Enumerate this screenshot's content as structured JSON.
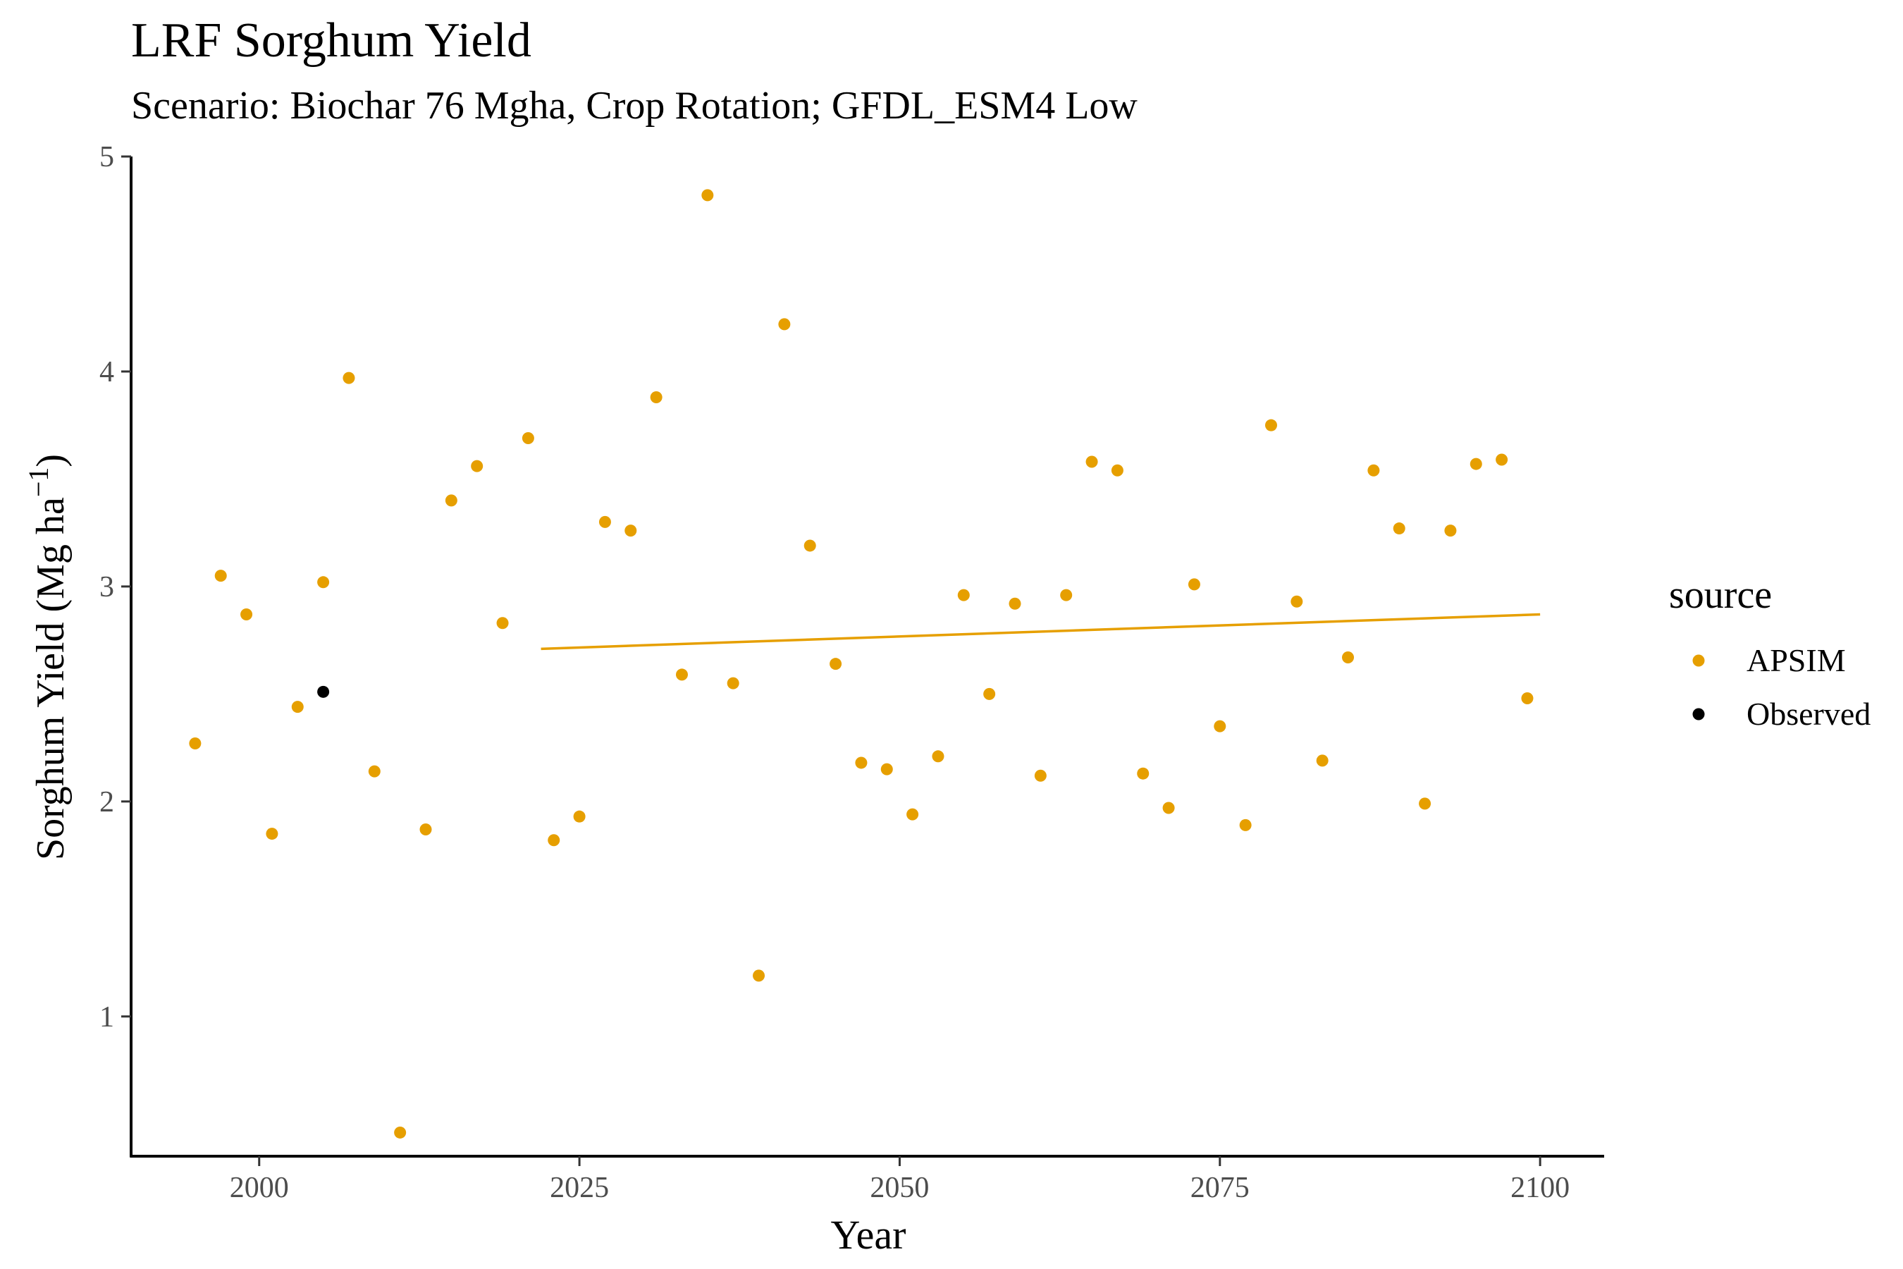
{
  "chart_data": {
    "type": "scatter",
    "title": "LRF Sorghum Yield",
    "subtitle": "Scenario: Biochar 76 Mgha, Crop Rotation; GFDL_ESM4 Low",
    "xlabel": "Year",
    "ylabel_main": "Sorghum Yield (Mg ha",
    "ylabel_sup": "−1",
    "ylabel_close": ")",
    "xlim": [
      1990,
      2105
    ],
    "ylim": [
      0.35,
      5.0
    ],
    "xticks": [
      2000,
      2025,
      2050,
      2075,
      2100
    ],
    "yticks": [
      1,
      2,
      3,
      4,
      5
    ],
    "grid": false,
    "legend": {
      "title": "source",
      "placement": "right",
      "entries": [
        {
          "name": "APSIM",
          "color": "#E69F00"
        },
        {
          "name": "Observed",
          "color": "#000000"
        }
      ]
    },
    "series": [
      {
        "name": "APSIM",
        "color": "#E69F00",
        "points": [
          [
            1995,
            2.27
          ],
          [
            1997,
            3.05
          ],
          [
            1999,
            2.87
          ],
          [
            2001,
            1.85
          ],
          [
            2003,
            2.44
          ],
          [
            2005,
            3.02
          ],
          [
            2007,
            3.97
          ],
          [
            2009,
            2.14
          ],
          [
            2011,
            0.46
          ],
          [
            2013,
            1.87
          ],
          [
            2015,
            3.4
          ],
          [
            2017,
            3.56
          ],
          [
            2019,
            2.83
          ],
          [
            2021,
            3.69
          ],
          [
            2023,
            1.82
          ],
          [
            2025,
            1.93
          ],
          [
            2027,
            3.3
          ],
          [
            2029,
            3.26
          ],
          [
            2031,
            3.88
          ],
          [
            2033,
            2.59
          ],
          [
            2035,
            4.82
          ],
          [
            2037,
            2.55
          ],
          [
            2039,
            1.19
          ],
          [
            2041,
            4.22
          ],
          [
            2043,
            3.19
          ],
          [
            2045,
            2.64
          ],
          [
            2047,
            2.18
          ],
          [
            2049,
            2.15
          ],
          [
            2051,
            1.94
          ],
          [
            2053,
            2.21
          ],
          [
            2055,
            2.96
          ],
          [
            2057,
            2.5
          ],
          [
            2059,
            2.92
          ],
          [
            2061,
            2.12
          ],
          [
            2063,
            2.96
          ],
          [
            2065,
            3.58
          ],
          [
            2067,
            3.54
          ],
          [
            2069,
            2.13
          ],
          [
            2071,
            1.97
          ],
          [
            2073,
            3.01
          ],
          [
            2075,
            2.35
          ],
          [
            2077,
            1.89
          ],
          [
            2079,
            3.75
          ],
          [
            2081,
            2.93
          ],
          [
            2083,
            2.19
          ],
          [
            2085,
            2.67
          ],
          [
            2087,
            3.54
          ],
          [
            2089,
            3.27
          ],
          [
            2091,
            1.99
          ],
          [
            2093,
            3.26
          ],
          [
            2095,
            3.57
          ],
          [
            2097,
            3.59
          ],
          [
            2099,
            2.48
          ]
        ]
      },
      {
        "name": "Observed",
        "color": "#000000",
        "points": [
          [
            2005,
            2.51
          ]
        ]
      }
    ],
    "trend_line": {
      "series": "APSIM",
      "color": "#E69F00",
      "x": [
        2022,
        2100
      ],
      "y": [
        2.71,
        2.87
      ]
    }
  }
}
